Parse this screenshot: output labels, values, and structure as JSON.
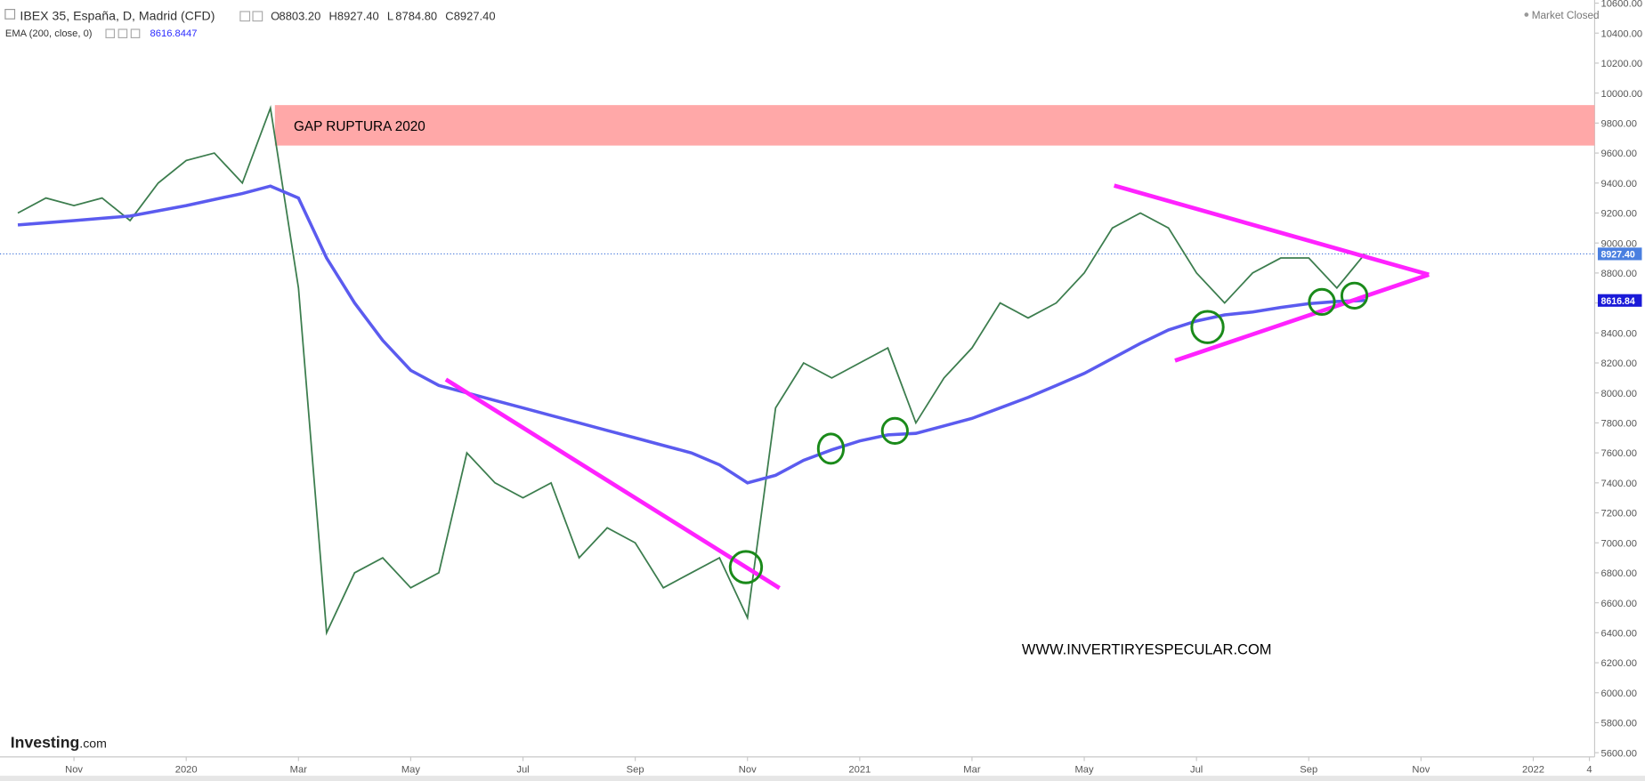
{
  "chart_data": {
    "type": "line",
    "title": "IBEX 35, España, D, Madrid (CFD)",
    "ohlc": [
      {
        "label": "O",
        "value": "8803.20"
      },
      {
        "label": "H",
        "value": "8927.40"
      },
      {
        "label": "L",
        "value": "8784.80"
      },
      {
        "label": "C",
        "value": "8927.40"
      }
    ],
    "indicator": {
      "label": "EMA (200, close, 0)",
      "value": "8616.8447"
    },
    "status": "Market Closed",
    "categories": [
      null,
      null,
      "Nov",
      null,
      null,
      null,
      "2020",
      null,
      null,
      null,
      "Mar",
      null,
      null,
      null,
      "May",
      null,
      null,
      null,
      "Jul",
      null,
      null,
      null,
      "Sep",
      null,
      null,
      null,
      "Nov",
      null,
      null,
      null,
      "2021",
      null,
      null,
      null,
      "Mar",
      null,
      null,
      null,
      "May",
      null,
      null,
      null,
      "Jul",
      null,
      null,
      null,
      "Sep",
      null,
      null,
      null,
      "Nov",
      null,
      null,
      null,
      "2022",
      null,
      "4"
    ],
    "series": [
      {
        "name": "IBEX 35, España, D, Madrid (CFD)",
        "color": "#3c7d4e",
        "values": [
          9200,
          9300,
          9250,
          9300,
          9150,
          9400,
          9550,
          9600,
          9400,
          9900,
          8700,
          6400,
          6800,
          6900,
          6700,
          6800,
          7600,
          7400,
          7300,
          7400,
          6900,
          7100,
          7000,
          6700,
          6800,
          6900,
          6500,
          7900,
          8200,
          8100,
          8200,
          8300,
          7800,
          8100,
          8300,
          8600,
          8500,
          8600,
          8800,
          9100,
          9200,
          9100,
          8800,
          8600,
          8800,
          8900,
          8900,
          8700,
          8927.4,
          null,
          null,
          null,
          null,
          null,
          null,
          null,
          null
        ]
      },
      {
        "name": "EMA (200, close, 0)",
        "color": "#5b5bef",
        "values": [
          9120,
          9135,
          9150,
          9165,
          9180,
          9215,
          9250,
          9290,
          9330,
          9380,
          9300,
          8900,
          8600,
          8350,
          8150,
          8050,
          8000,
          7950,
          7900,
          7850,
          7800,
          7750,
          7700,
          7650,
          7600,
          7520,
          7400,
          7450,
          7550,
          7620,
          7680,
          7720,
          7730,
          7780,
          7830,
          7900,
          7970,
          8050,
          8130,
          8230,
          8330,
          8420,
          8480,
          8520,
          8540,
          8570,
          8595,
          8610,
          8616.84,
          null,
          null,
          null,
          null,
          null,
          null,
          null,
          null
        ]
      }
    ],
    "last_price": {
      "value": 8927.4,
      "label": "8927.40"
    },
    "ema_price": {
      "value": 8616.84,
      "label": "8616.84"
    },
    "zone": {
      "label": "GAP RUPTURA 2020",
      "from": 9650,
      "to": 9920,
      "color": "#ffa8a8"
    },
    "watermark": "WWW.INVERTIRYESPECULAR.COM",
    "logo": {
      "brand": "Investing",
      "suffix": ".com"
    },
    "ylim": [
      5600,
      10600
    ],
    "yticks": [
      {
        "value": 5600,
        "label": "5600.00"
      },
      {
        "value": 5800,
        "label": "5800.00"
      },
      {
        "value": 6000,
        "label": "6000.00"
      },
      {
        "value": 6200,
        "label": "6200.00"
      },
      {
        "value": 6400,
        "label": "6400.00"
      },
      {
        "value": 6600,
        "label": "6600.00"
      },
      {
        "value": 6800,
        "label": "6800.00"
      },
      {
        "value": 7000,
        "label": "7000.00"
      },
      {
        "value": 7200,
        "label": "7200.00"
      },
      {
        "value": 7400,
        "label": "7400.00"
      },
      {
        "value": 7600,
        "label": "7600.00"
      },
      {
        "value": 7800,
        "label": "7800.00"
      },
      {
        "value": 8000,
        "label": "8000.00"
      },
      {
        "value": 8200,
        "label": "8200.00"
      },
      {
        "value": 8400,
        "label": "8400.00"
      },
      {
        "value": 8600,
        "label": "8600.00"
      },
      {
        "value": 8800,
        "label": "8800.00"
      },
      {
        "value": 9000,
        "label": "9000.00"
      },
      {
        "value": 9200,
        "label": "9200.00"
      },
      {
        "value": 9400,
        "label": "9400.00"
      },
      {
        "value": 9600,
        "label": "9600.00"
      },
      {
        "value": 9800,
        "label": "9800.00"
      },
      {
        "value": 10000,
        "label": "10000.00"
      },
      {
        "value": 10200,
        "label": "10200.00"
      },
      {
        "value": 10400,
        "label": "10400.00"
      },
      {
        "value": 10600,
        "label": "10600.00"
      }
    ]
  }
}
